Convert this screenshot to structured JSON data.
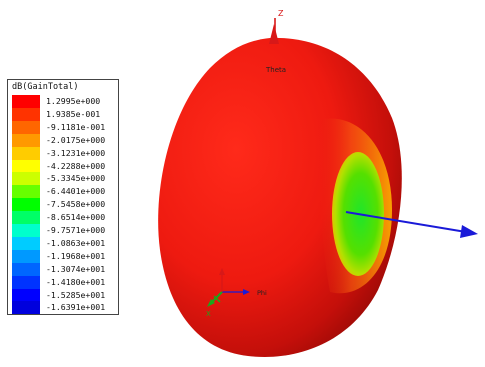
{
  "legend": {
    "title": "dB(GainTotal)",
    "entries": [
      {
        "value": "1.2995e+000",
        "color": "#ff0000"
      },
      {
        "value": "1.9385e-001",
        "color": "#ff3300"
      },
      {
        "value": "-9.1181e-001",
        "color": "#ff6600"
      },
      {
        "value": "-2.0175e+000",
        "color": "#ff9900"
      },
      {
        "value": "-3.1231e+000",
        "color": "#ffcc00"
      },
      {
        "value": "-4.2288e+000",
        "color": "#ffff00"
      },
      {
        "value": "-5.3345e+000",
        "color": "#ccff00"
      },
      {
        "value": "-6.4401e+000",
        "color": "#66ff00"
      },
      {
        "value": "-7.5458e+000",
        "color": "#00ff00"
      },
      {
        "value": "-8.6514e+000",
        "color": "#00ff66"
      },
      {
        "value": "-9.7571e+000",
        "color": "#00ffcc"
      },
      {
        "value": "-1.0863e+001",
        "color": "#00ccff"
      },
      {
        "value": "-1.1968e+001",
        "color": "#0099ff"
      },
      {
        "value": "-1.3074e+001",
        "color": "#0066ff"
      },
      {
        "value": "-1.4180e+001",
        "color": "#0033ff"
      },
      {
        "value": "-1.5285e+001",
        "color": "#0000ff"
      },
      {
        "value": "-1.6391e+001",
        "color": "#0000dd"
      }
    ]
  },
  "scene": {
    "z_axis_label": "Z",
    "theta_label": "Theta",
    "phi_label": "Phi",
    "x_axis_label": "X"
  }
}
